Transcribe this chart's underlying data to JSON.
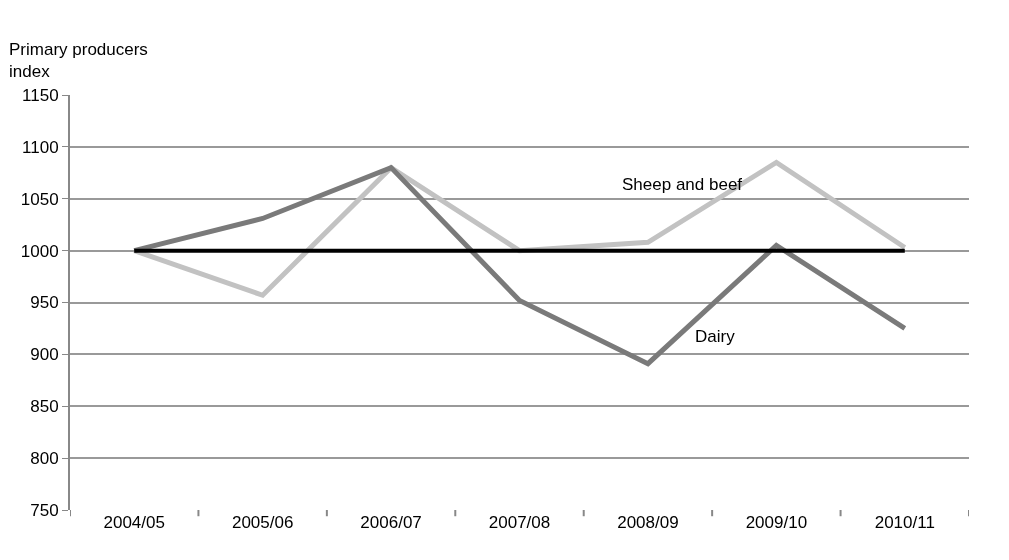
{
  "chart_data": {
    "type": "line",
    "ylabel": "Primary producers\nindex",
    "categories": [
      "2004/05",
      "2005/06",
      "2006/07",
      "2007/08",
      "2008/09",
      "2009/10",
      "2010/11"
    ],
    "series": [
      {
        "name": "Sheep and beef",
        "color": "#c2c2c2",
        "values": [
          1000,
          957,
          1080,
          1000,
          1008,
          1085,
          1003
        ]
      },
      {
        "name": "Dairy",
        "color": "#7a7a7a",
        "values": [
          1000,
          1031,
          1080,
          952,
          891,
          1005,
          925
        ]
      },
      {
        "color": "#000000",
        "values": [
          1000,
          1000,
          1000,
          1000,
          1000,
          1000,
          1000
        ]
      }
    ],
    "ylim": [
      750,
      1150
    ],
    "yticks": [
      750,
      800,
      850,
      900,
      950,
      1000,
      1050,
      1100,
      1150
    ],
    "grid": "y",
    "legend": false,
    "marker": "none",
    "line_style": "solid"
  }
}
